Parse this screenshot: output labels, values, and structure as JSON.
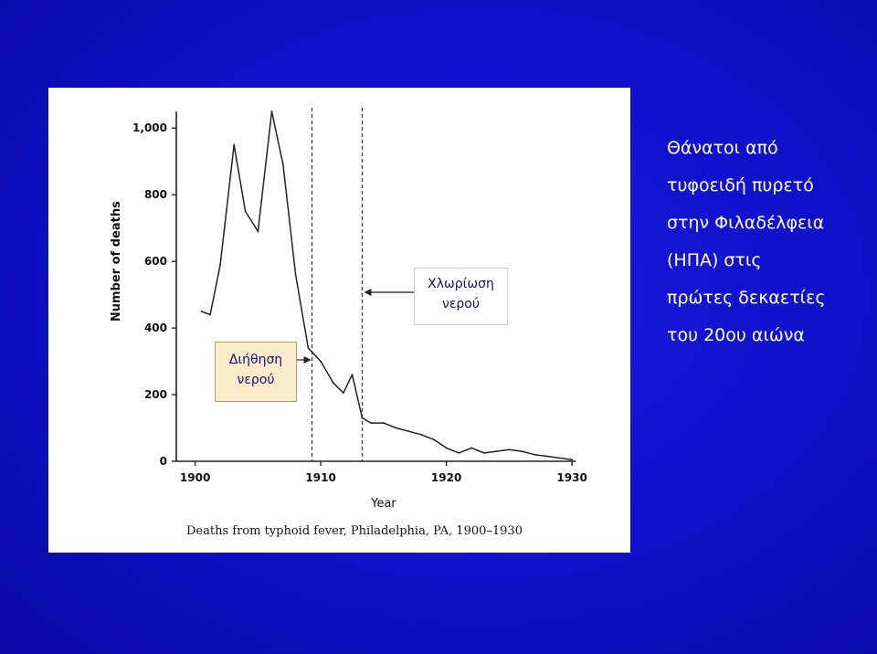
{
  "slide": {
    "title_lines": [
      "Θάνατοι από",
      "τυφοειδή πυρετό",
      "στην Φιλαδέλφεια",
      "(ΗΠΑ) στις",
      "πρώτες δεκαετίες",
      "του 20ου αιώνα"
    ]
  },
  "callouts": {
    "chlorination": [
      "Χλωρίωση",
      "νερού"
    ],
    "filtration": [
      "Διήθηση",
      "νερού"
    ]
  },
  "chart_data": {
    "type": "line",
    "title": "",
    "caption": "Deaths from typhoid fever, Philadelphia, PA, 1900–1930",
    "xlabel": "Year",
    "ylabel": "Number of deaths",
    "xlim": [
      1898.5,
      1930.5
    ],
    "ylim": [
      0,
      1050
    ],
    "xticks": [
      1900,
      1910,
      1920,
      1930
    ],
    "yticks": [
      0,
      200,
      400,
      600,
      800,
      1000
    ],
    "ytick_labels": [
      "0",
      "200",
      "400",
      "600",
      "800",
      "1,000"
    ],
    "grid": false,
    "line_color": "#222222",
    "series": [
      {
        "x": [
          1900.5,
          1901.2,
          1902,
          1903.1,
          1904,
          1905,
          1906.1,
          1907,
          1908,
          1909,
          1910,
          1911,
          1911.8,
          1912.5,
          1913.3,
          1914,
          1915,
          1916,
          1917,
          1918,
          1919,
          1920,
          1921,
          1922,
          1923,
          1924,
          1925,
          1926,
          1927,
          1928,
          1929,
          1930
        ],
        "y": [
          450,
          440,
          590,
          950,
          750,
          690,
          1050,
          890,
          560,
          340,
          300,
          235,
          205,
          260,
          130,
          115,
          115,
          100,
          90,
          80,
          65,
          40,
          25,
          40,
          25,
          30,
          35,
          30,
          20,
          15,
          10,
          5
        ]
      }
    ],
    "events": [
      {
        "x": 1909.3,
        "label_key": "filtration"
      },
      {
        "x": 1913.3,
        "label_key": "chlorination"
      }
    ]
  }
}
